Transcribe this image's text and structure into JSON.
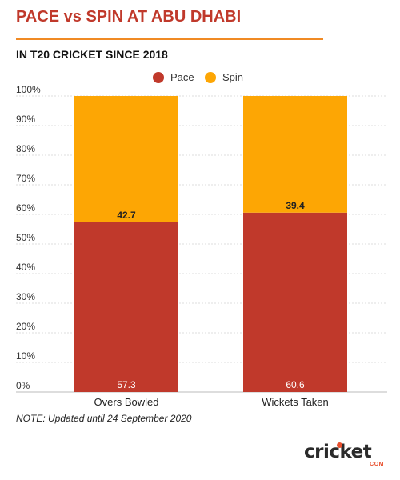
{
  "title": "PACE vs SPIN AT ABU DHABI",
  "subtitle": "IN T20 CRICKET SINCE 2018",
  "note": "NOTE: Updated until 24 September 2020",
  "logo": {
    "text": "cricket",
    "sub": "COM"
  },
  "colors": {
    "pace": "#c0392b",
    "spin": "#fda604",
    "title": "#c0392b",
    "rule": "#f08a24"
  },
  "chart_data": {
    "type": "bar",
    "stacked": true,
    "categories": [
      "Overs Bowled",
      "Wickets Taken"
    ],
    "series": [
      {
        "name": "Pace",
        "values": [
          57.3,
          60.6
        ]
      },
      {
        "name": "Spin",
        "values": [
          42.7,
          39.4
        ]
      }
    ],
    "y_ticks": [
      "0%",
      "10%",
      "20%",
      "30%",
      "40%",
      "50%",
      "60%",
      "70%",
      "80%",
      "90%",
      "100%"
    ],
    "ylim": [
      0,
      100
    ],
    "grid": true,
    "legend": "top-center"
  }
}
